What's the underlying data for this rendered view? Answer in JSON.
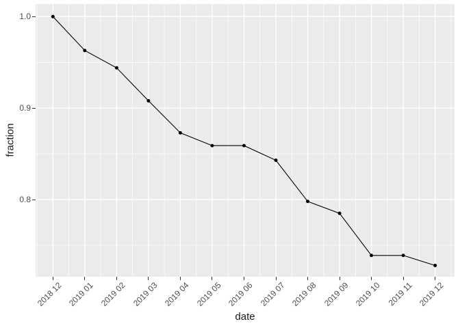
{
  "chart_data": {
    "type": "line",
    "title": "",
    "xlabel": "date",
    "ylabel": "fraction",
    "x": [
      "2018 12",
      "2019 01",
      "2019 02",
      "2019 03",
      "2019 04",
      "2019 05",
      "2019 06",
      "2019 07",
      "2019 08",
      "2019 09",
      "2019 10",
      "2019 11",
      "2019 12"
    ],
    "series": [
      {
        "name": "fraction",
        "values": [
          1.0,
          0.963,
          0.944,
          0.908,
          0.873,
          0.859,
          0.859,
          0.843,
          0.798,
          0.785,
          0.739,
          0.739,
          0.728
        ]
      }
    ],
    "ylim": [
      0.713,
      1.014
    ],
    "y_major_ticks": [
      1.0,
      0.9,
      0.8
    ],
    "y_tick_labels": [
      "1.0",
      "0.9",
      "0.8"
    ],
    "y_minor_ticks": [
      0.95,
      0.85,
      0.75
    ],
    "grid": "major-and-minor",
    "legend_position": "none",
    "style": "ggplot2-theme-grey",
    "colors": {
      "panel_background": "#EBEBEB",
      "grid_line": "#FFFFFF",
      "line": "#000000",
      "point": "#000000",
      "tick_label_text": "#4D4D4D",
      "axis_title_text": "#1A1A1A",
      "tick_mark": "#333333",
      "figure_background": "#FFFFFF"
    }
  }
}
